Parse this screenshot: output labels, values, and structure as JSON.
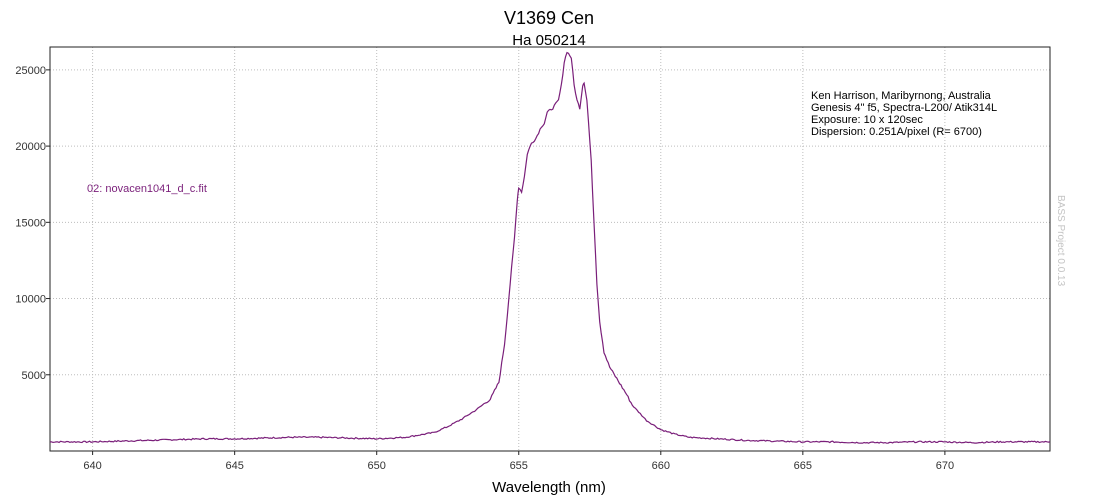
{
  "chart_data": {
    "type": "line",
    "title": "V1369 Cen",
    "subtitle": "Ha 050214",
    "xlabel": "Wavelength (nm)",
    "ylabel": "",
    "xlim": [
      638.5,
      673.7
    ],
    "ylim": [
      0,
      26500
    ],
    "xticks": [
      640,
      645,
      650,
      655,
      660,
      665,
      670
    ],
    "yticks": [
      5000,
      10000,
      15000,
      20000,
      25000
    ],
    "grid": true,
    "series": [
      {
        "name": "02: novacen1041_d_c.fit",
        "color": "#7a1f7a",
        "x": [
          638.5,
          640,
          641,
          642,
          643,
          644,
          645,
          646,
          647,
          648,
          649,
          650,
          651,
          652,
          652.5,
          653,
          653.5,
          654,
          654.3,
          654.5,
          654.7,
          654.85,
          654.95,
          655.0,
          655.1,
          655.2,
          655.3,
          655.45,
          655.6,
          655.8,
          655.9,
          656.0,
          656.2,
          656.4,
          656.5,
          656.6,
          656.7,
          656.85,
          656.95,
          657.05,
          657.15,
          657.25,
          657.3,
          657.4,
          657.55,
          657.65,
          657.75,
          657.85,
          658.0,
          658.2,
          658.5,
          658.8,
          659.0,
          659.5,
          660.0,
          660.5,
          661,
          662,
          663,
          664,
          665,
          666,
          667,
          668,
          669,
          670,
          671,
          672,
          673,
          673.7
        ],
        "y": [
          600,
          600,
          650,
          700,
          750,
          800,
          800,
          850,
          900,
          900,
          850,
          800,
          900,
          1200,
          1600,
          2100,
          2700,
          3400,
          4500,
          7000,
          11000,
          14000,
          16500,
          17300,
          17000,
          18000,
          19500,
          20200,
          20500,
          21300,
          21500,
          22200,
          22500,
          23000,
          24000,
          25500,
          26200,
          25800,
          24000,
          23000,
          22500,
          24000,
          24200,
          23000,
          19000,
          15000,
          11000,
          8500,
          6500,
          5500,
          4600,
          3700,
          3000,
          2000,
          1400,
          1100,
          900,
          800,
          700,
          650,
          600,
          600,
          550,
          550,
          600,
          600,
          550,
          600,
          600,
          600
        ]
      }
    ],
    "annotations": [
      "Ken Harrison, Maribyrnong, Australia",
      "Genesis 4\" f5, Spectra-L200/ Atik314L",
      "Exposure: 10 x 120sec",
      "Dispersion: 0.251A/pixel (R= 6700)"
    ],
    "watermark": "BASS Project 0.0.13"
  }
}
